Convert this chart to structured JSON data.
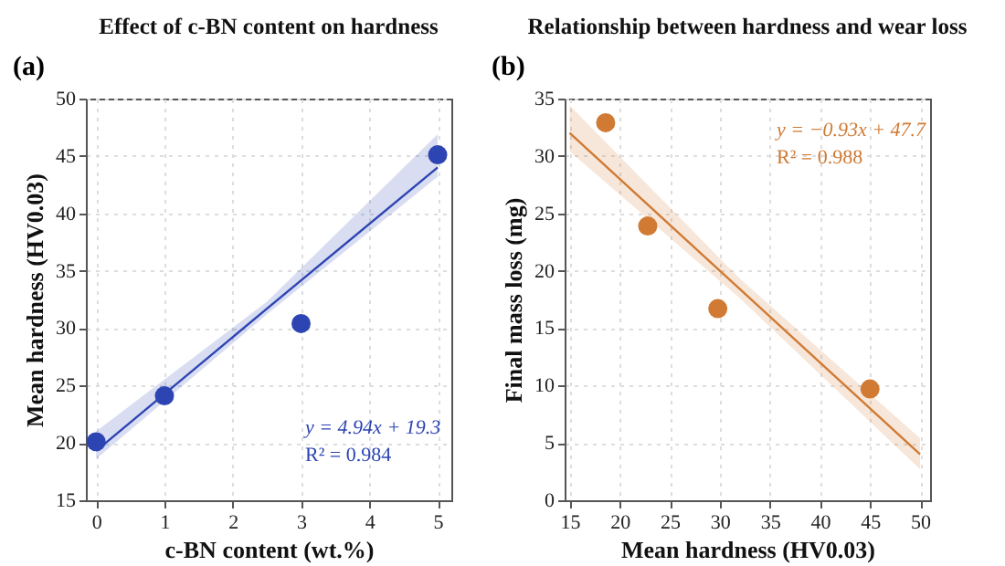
{
  "chart_data": [
    {
      "type": "scatter",
      "title": "Effect of c-BN content on hardness",
      "xlabel": "c-BN content (wt.%)",
      "ylabel": "Mean hardness (HV0.03)",
      "annotations": [
        "(a)",
        "y = 4.94x + 19.3",
        "R² = 0.984"
      ],
      "xlim": [
        -0.15,
        5.2
      ],
      "xticks": [
        0,
        1,
        2,
        3,
        4,
        5
      ],
      "ylim": [
        15,
        50
      ],
      "yticks": [
        15,
        20,
        25,
        30,
        35,
        40,
        45,
        50
      ],
      "grid": true,
      "marker": "circle",
      "line_style": "solid",
      "series": [
        {
          "color": "#2d44b3",
          "x": [
            0,
            1,
            3,
            5
          ],
          "values": [
            20.1,
            24.1,
            30.4,
            45.1
          ]
        },
        {
          "type": "line",
          "marker": "none",
          "color": "#2d44b3",
          "x": [
            0,
            2.5,
            5
          ],
          "values": [
            19.3,
            31.7,
            44.0
          ],
          "lower": [
            18.6,
            31.2,
            43.2
          ],
          "upper": [
            21.0,
            32.3,
            46.9
          ]
        }
      ]
    },
    {
      "type": "scatter",
      "title": "Relationship between hardness and wear loss",
      "xlabel": "Mean hardness (HV0.03)",
      "ylabel": "Final mass loss (mg)",
      "annotations": [
        "(b)",
        "y = −0.93x + 47.7",
        "R² = 0.988"
      ],
      "xlim": [
        14.5,
        51
      ],
      "xticks": [
        15,
        20,
        25,
        30,
        35,
        40,
        45,
        50
      ],
      "ylim": [
        0,
        35
      ],
      "yticks": [
        0,
        5,
        10,
        15,
        20,
        25,
        30,
        35
      ],
      "grid": true,
      "marker": "circle",
      "line_style": "solid",
      "series": [
        {
          "color": "#d07a33",
          "x": [
            18.6,
            22.8,
            29.8,
            45
          ],
          "values": [
            32.9,
            23.9,
            16.7,
            9.7
          ]
        },
        {
          "type": "line",
          "marker": "none",
          "color": "#d07a33",
          "x": [
            15,
            32,
            50
          ],
          "values": [
            32.0,
            18.4,
            4.0
          ],
          "lower": [
            30.4,
            17.6,
            2.7
          ],
          "upper": [
            34.4,
            19.3,
            5.4
          ]
        }
      ]
    }
  ]
}
